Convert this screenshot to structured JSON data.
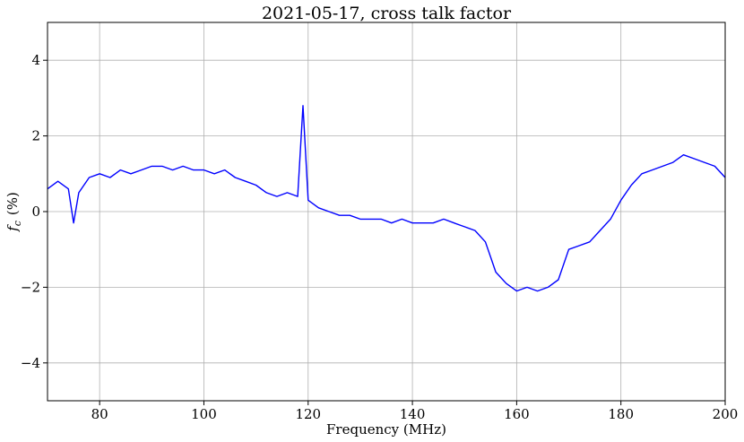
{
  "chart_data": {
    "type": "line",
    "title": "2021-05-17, cross talk factor",
    "xlabel": "Frequency (MHz)",
    "ylabel": "f_c (%)",
    "ylabel_main": "f",
    "ylabel_sub": "c",
    "ylabel_unit": "(%)",
    "xlim": [
      70,
      200
    ],
    "ylim": [
      -5,
      5
    ],
    "xticks": [
      80,
      100,
      120,
      140,
      160,
      180,
      200
    ],
    "yticks": [
      -4,
      -2,
      0,
      2,
      4
    ],
    "xtick_labels": [
      "80",
      "100",
      "120",
      "140",
      "160",
      "180",
      "200"
    ],
    "ytick_labels": [
      "−4",
      "−2",
      "0",
      "2",
      "4"
    ],
    "grid": true,
    "series": [
      {
        "color": "#0000ff",
        "x": [
          70,
          72,
          74,
          75,
          76,
          78,
          80,
          82,
          84,
          86,
          88,
          90,
          92,
          94,
          96,
          98,
          100,
          102,
          104,
          106,
          108,
          110,
          112,
          114,
          116,
          118,
          119,
          120,
          122,
          124,
          126,
          128,
          130,
          132,
          134,
          136,
          138,
          140,
          142,
          144,
          146,
          148,
          150,
          152,
          154,
          155,
          156,
          158,
          160,
          162,
          164,
          166,
          168,
          170,
          172,
          174,
          176,
          178,
          180,
          182,
          184,
          186,
          188,
          190,
          192,
          194,
          196,
          198,
          200
        ],
        "y": [
          0.6,
          0.8,
          0.6,
          -0.3,
          0.5,
          0.9,
          1.0,
          0.9,
          1.1,
          1.0,
          1.1,
          1.2,
          1.2,
          1.1,
          1.2,
          1.1,
          1.1,
          1.0,
          1.1,
          0.9,
          0.8,
          0.7,
          0.5,
          0.4,
          0.5,
          0.4,
          2.8,
          0.3,
          0.1,
          0.0,
          -0.1,
          -0.1,
          -0.2,
          -0.2,
          -0.2,
          -0.3,
          -0.2,
          -0.3,
          -0.3,
          -0.3,
          -0.2,
          -0.3,
          -0.4,
          -0.5,
          -0.8,
          -1.2,
          -1.6,
          -1.9,
          -2.1,
          -2.0,
          -2.1,
          -2.0,
          -1.8,
          -1.0,
          -0.9,
          -0.8,
          -0.5,
          -0.2,
          0.3,
          0.7,
          1.0,
          1.1,
          1.2,
          1.3,
          1.5,
          1.4,
          1.3,
          1.2,
          0.9
        ]
      }
    ]
  }
}
